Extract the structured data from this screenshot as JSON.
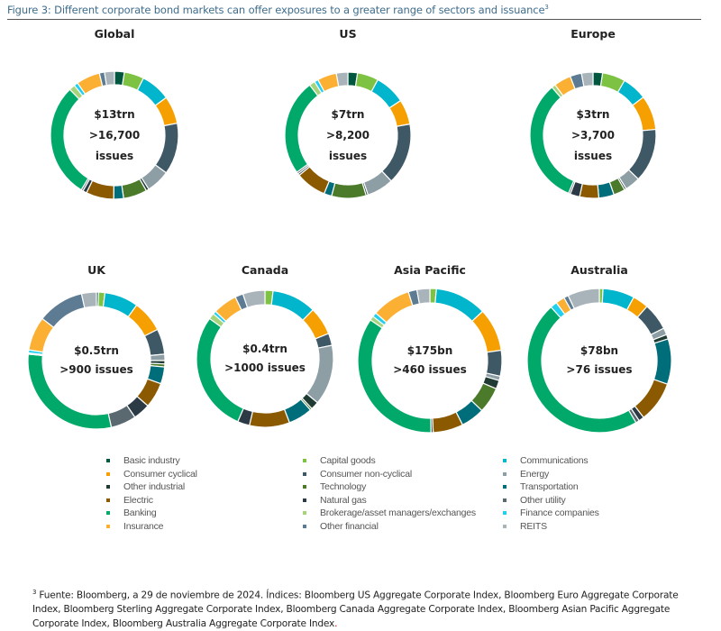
{
  "figure": {
    "title": "Figure 3: Different corporate bond markets can offer exposures to a greater range of sectors and issuance",
    "title_superscript": "3"
  },
  "chart_data": {
    "type": "pie",
    "variant": "donut",
    "start_angle": "12 o'clock, clockwise",
    "sectors": [
      {
        "name": "Basic industry",
        "color": "#00573f"
      },
      {
        "name": "Capital goods",
        "color": "#7dc242"
      },
      {
        "name": "Communications",
        "color": "#00b5cc"
      },
      {
        "name": "Consumer cyclical",
        "color": "#f5a000"
      },
      {
        "name": "Consumer non-cyclical",
        "color": "#3f5866"
      },
      {
        "name": "Energy",
        "color": "#8e9ea5"
      },
      {
        "name": "Other industrial",
        "color": "#1f3b33"
      },
      {
        "name": "Technology",
        "color": "#4a7a2a"
      },
      {
        "name": "Transportation",
        "color": "#006e7a"
      },
      {
        "name": "Electric",
        "color": "#8b5a00"
      },
      {
        "name": "Natural gas",
        "color": "#2b3a45"
      },
      {
        "name": "Other utility",
        "color": "#5a6870"
      },
      {
        "name": "Banking",
        "color": "#00a96a"
      },
      {
        "name": "Brokerage/asset managers/exchanges",
        "color": "#a6d47a"
      },
      {
        "name": "Finance companies",
        "color": "#21d0ee"
      },
      {
        "name": "Insurance",
        "color": "#fbb034"
      },
      {
        "name": "Other financial",
        "color": "#5d7c93"
      },
      {
        "name": "REITS",
        "color": "#a8b3ba"
      }
    ],
    "charts": [
      {
        "title": "Global",
        "center_lines": [
          "$13trn",
          ">16,700",
          "issues"
        ],
        "values_pct": [
          2.5,
          5,
          7.5,
          7,
          13,
          6,
          0.7,
          6,
          2.5,
          7,
          1,
          0.5,
          29,
          1.5,
          1,
          6,
          1.3,
          2.5
        ]
      },
      {
        "title": "US",
        "center_lines": [
          "$7trn",
          ">8,200",
          "issues"
        ],
        "values_pct": [
          2.5,
          5.5,
          8,
          6.5,
          16,
          7,
          0.5,
          9,
          2,
          8,
          0.5,
          0.5,
          25,
          1.5,
          1,
          5,
          0,
          3
        ]
      },
      {
        "title": "Europe",
        "center_lines": [
          "$3trn",
          ">3,700",
          "issues"
        ],
        "values_pct": [
          2.5,
          6,
          6.5,
          9,
          14,
          4,
          0.5,
          3,
          4,
          5,
          2.5,
          0.5,
          33,
          1,
          0,
          4.5,
          3,
          3
        ]
      },
      {
        "title": "UK",
        "center_lines": [
          "$0.5trn",
          ">900 issues"
        ],
        "values_pct": [
          0.5,
          1.5,
          8,
          7.5,
          6,
          1.5,
          0.8,
          0.7,
          4,
          6,
          4,
          6,
          30,
          0.3,
          0.7,
          8,
          11,
          3.5
        ]
      },
      {
        "title": "Canada",
        "center_lines": [
          "$0.4trn",
          ">1000 issues"
        ],
        "values_pct": [
          0,
          2,
          11,
          7,
          3,
          15,
          2,
          0.5,
          6,
          10,
          3,
          0,
          30,
          1.5,
          0.8,
          6,
          2,
          5.5
        ]
      },
      {
        "title": "Asia Pacific",
        "center_lines": [
          "$175bn",
          ">460 issues"
        ],
        "values_pct": [
          0,
          1.5,
          12,
          10,
          6,
          1,
          2,
          6,
          5.5,
          7,
          0.5,
          0,
          36,
          1,
          1,
          9,
          2,
          3
        ]
      },
      {
        "title": "Australia",
        "center_lines": [
          "$78bn",
          ">76 issues"
        ],
        "values_pct": [
          0,
          0.8,
          7,
          3.5,
          6,
          1.5,
          1,
          0,
          10,
          9,
          1.2,
          0.8,
          46,
          0,
          1.5,
          2,
          1,
          7
        ]
      }
    ]
  },
  "legend": {
    "columns": [
      [
        "Basic industry",
        "Consumer cyclical",
        "Other industrial",
        "Electric",
        "Banking",
        "Insurance"
      ],
      [
        "Capital goods",
        "Consumer non-cyclical",
        "Technology",
        "Natural gas",
        "Brokerage/asset managers/exchanges",
        "Other financial"
      ],
      [
        "Communications",
        "Energy",
        "Transportation",
        "Other utility",
        "Finance companies",
        "REITS"
      ]
    ]
  },
  "footnote": {
    "marker": "3",
    "text": " Fuente: Bloomberg, a 29 de noviembre de 2024. Índices: Bloomberg US Aggregate Corporate Index, Bloomberg Euro Aggregate Corporate Index, Bloomberg Sterling Aggregate Corporate Index, Bloomberg Canada Aggregate Corporate Index, Bloomberg Asian Pacific Aggregate Corporate Index, Bloomberg Australia Aggregate Corporate Index",
    "end_mark": "."
  }
}
